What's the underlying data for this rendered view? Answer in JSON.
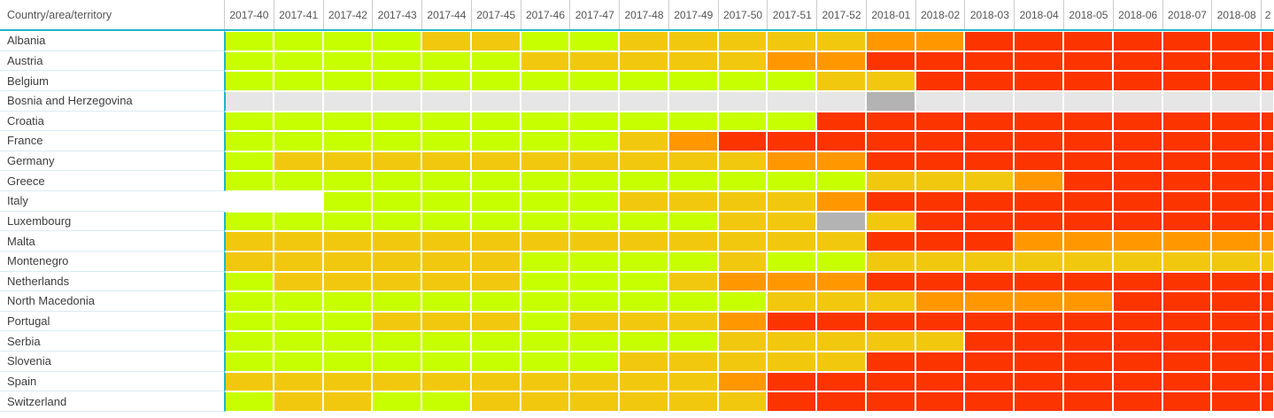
{
  "ui": {
    "corner_header": "Country/area/territory",
    "accent_teal": "#21b6c7"
  },
  "chart_data": {
    "type": "heatmap",
    "x_labels": [
      "2017-40",
      "2017-41",
      "2017-42",
      "2017-43",
      "2017-44",
      "2017-45",
      "2017-46",
      "2017-47",
      "2017-48",
      "2017-49",
      "2017-50",
      "2017-51",
      "2017-52",
      "2018-01",
      "2018-02",
      "2018-03",
      "2018-04",
      "2018-05",
      "2018-06",
      "2018-07",
      "2018-08",
      "2"
    ],
    "y_labels": [
      "Albania",
      "Austria",
      "Belgium",
      "Bosnia and Herzegovina",
      "Croatia",
      "France",
      "Germany",
      "Greece",
      "Italy",
      "Luxembourg",
      "Malta",
      "Montenegro",
      "Netherlands",
      "North Macedonia",
      "Portugal",
      "Serbia",
      "Slovenia",
      "Spain",
      "Switzerland"
    ],
    "levels": {
      "G": {
        "name": "green-low",
        "color": "#c8ff00"
      },
      "Y": {
        "name": "yellow-medium",
        "color": "#f2c80f"
      },
      "O": {
        "name": "orange-high",
        "color": "#ff9800"
      },
      "R": {
        "name": "red-very-high",
        "color": "#fc3400"
      },
      "E": {
        "name": "light-gray-no-data",
        "color": "#e6e6e6"
      },
      "D": {
        "name": "dark-gray",
        "color": "#b3b3b3"
      },
      "W": {
        "name": "white-blank",
        "color": "#ffffff"
      }
    },
    "rows": [
      {
        "country": "Albania",
        "cells": "GGGGYYGGYYYYYOORRRRRRR"
      },
      {
        "country": "Austria",
        "cells": "GGGGGGYYYYYOORRRRRRRRR"
      },
      {
        "country": "Belgium",
        "cells": "GGGGGGGGGGGGYYRRRRRRRR"
      },
      {
        "country": "Bosnia and Herzegovina",
        "cells": "EEEEEEEEEEEEEDEEEEEEEE"
      },
      {
        "country": "Croatia",
        "cells": "GGGGGGGGGGGGRRRRRRRRRR"
      },
      {
        "country": "France",
        "cells": "GGGGGGGGYORRRRRRRRRRRR"
      },
      {
        "country": "Germany",
        "cells": "GYYYYYYYYYYOORRRRRRRRR"
      },
      {
        "country": "Greece",
        "cells": "GGGGGGGGGGGGGYYYORRRRR"
      },
      {
        "country": "Italy",
        "cells": "WWGGGGGGYYYYORRRRRRRRR"
      },
      {
        "country": "Luxembourg",
        "cells": "GGGGGGGGGGYYDYRRRRRRRR"
      },
      {
        "country": "Malta",
        "cells": "YYYYYYYYYYYYYRRROOOOOO"
      },
      {
        "country": "Montenegro",
        "cells": "YYYYYYGGGGYGGYYYYYYYYY"
      },
      {
        "country": "Netherlands",
        "cells": "GYYYYYGGGYOOORRRRRRRRR"
      },
      {
        "country": "North Macedonia",
        "cells": "GGGGGGGGGGGYYYOOOORRRR"
      },
      {
        "country": "Portugal",
        "cells": "GGGYYYGYYYORRRRRRRRRRR"
      },
      {
        "country": "Serbia",
        "cells": "GGGGGGGGGGYYYYYRRRRRRR"
      },
      {
        "country": "Slovenia",
        "cells": "GGGGGGGGYYYYYRRRRRRRRR"
      },
      {
        "country": "Spain",
        "cells": "YYYYYYYYYYORRRRRRRRRRR"
      },
      {
        "country": "Switzerland",
        "cells": "GYYGGYYYYYYRRRRRRRRRRR"
      }
    ]
  }
}
